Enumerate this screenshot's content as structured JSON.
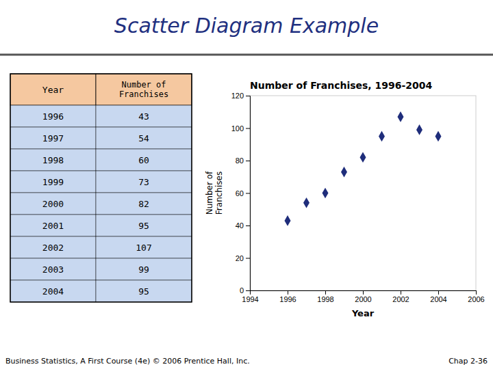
{
  "chart_data": {
    "type": "scatter",
    "title": "Scatter Diagram Example",
    "subtitle": "Number of Franchises, 1996-2004",
    "xlabel": "Year",
    "ylabel": "Number of\nFranchises",
    "x": [
      1996,
      1997,
      1998,
      1999,
      2000,
      2001,
      2002,
      2003,
      2004
    ],
    "values": [
      43,
      54,
      60,
      73,
      82,
      95,
      107,
      99,
      95
    ],
    "color": "#1F2D7B",
    "marker": "diamond",
    "xlim": [
      1994,
      2006
    ],
    "ylim": [
      0,
      120
    ],
    "xticks": [
      1994,
      1996,
      1998,
      2000,
      2002,
      2004,
      2006
    ],
    "yticks": [
      0,
      20,
      40,
      60,
      80,
      100,
      120
    ],
    "grid": false,
    "annotations": [
      "Business Statistics, A First Course (4e) © 2006 Prentice Hall, Inc.",
      "Chap 2-36"
    ]
  }
}
